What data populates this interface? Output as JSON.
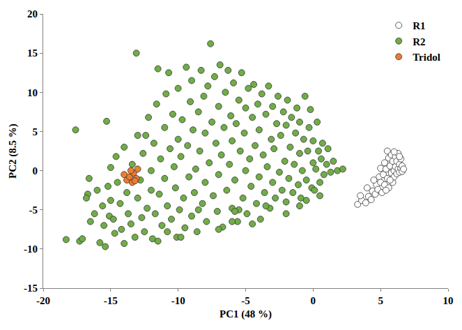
{
  "chart_data": {
    "type": "scatter",
    "x_label": "PC1 (48 %)",
    "y_label": "PC2 (8.5 %)",
    "xlim": [
      -20,
      10
    ],
    "xticks": [
      -20,
      -15,
      -10,
      -5,
      0,
      5,
      10
    ],
    "ylim": [
      -15,
      20
    ],
    "yticks": [
      -15,
      -10,
      -5,
      0,
      5,
      10,
      15,
      20
    ],
    "grid": false,
    "legend": "top-right",
    "series": [
      {
        "name": "R1",
        "color": "#ffffff",
        "marker": "circle",
        "points": [
          [
            3.3,
            -4.3
          ],
          [
            3.6,
            -3.8
          ],
          [
            3.9,
            -4.1
          ],
          [
            4.1,
            -3.3
          ],
          [
            4.3,
            -3.7
          ],
          [
            4.4,
            -2.6
          ],
          [
            4.6,
            -3
          ],
          [
            4.7,
            -1.8
          ],
          [
            4.8,
            -2.4
          ],
          [
            4.9,
            -0.8
          ],
          [
            5,
            -1.5
          ],
          [
            5,
            0.3
          ],
          [
            5.1,
            -2.8
          ],
          [
            5.2,
            -0.5
          ],
          [
            5.3,
            1
          ],
          [
            5.3,
            -1.8
          ],
          [
            5.4,
            0.2
          ],
          [
            5.5,
            2.5
          ],
          [
            5.5,
            -1
          ],
          [
            5.6,
            1.6
          ],
          [
            5.6,
            -2.2
          ],
          [
            5.7,
            0.6
          ],
          [
            5.8,
            -0.3
          ],
          [
            5.8,
            2
          ],
          [
            5.9,
            -1.5
          ],
          [
            5.9,
            1.2
          ],
          [
            6,
            0
          ],
          [
            6,
            -0.8
          ],
          [
            6.1,
            1.8
          ],
          [
            6.1,
            0.5
          ],
          [
            6.2,
            -0.4
          ],
          [
            6.2,
            1.2
          ],
          [
            6.3,
            0.2
          ],
          [
            6.3,
            2.2
          ],
          [
            6.4,
            -0.2
          ],
          [
            6.4,
            0.8
          ],
          [
            6.5,
            0.3
          ],
          [
            6.5,
            1.5
          ],
          [
            6.6,
            -0.1
          ],
          [
            6.6,
            0.6
          ],
          [
            6.7,
            0.2
          ],
          [
            5.4,
            -2.5
          ],
          [
            4.5,
            -1.2
          ],
          [
            3.5,
            -3.2
          ],
          [
            4,
            -2.2
          ],
          [
            5.7,
            -1.2
          ],
          [
            6,
            2.4
          ],
          [
            6.4,
            1.8
          ]
        ]
      },
      {
        "name": "R2",
        "color": "#70ad47",
        "marker": "circle",
        "points": [
          [
            -18.3,
            -8.8
          ],
          [
            -17.6,
            5.2
          ],
          [
            -17.3,
            -9
          ],
          [
            -17.1,
            -8.7
          ],
          [
            -16.7,
            -3
          ],
          [
            -16.8,
            -3.5
          ],
          [
            -16.6,
            -1
          ],
          [
            -16.5,
            -6.5
          ],
          [
            -16.2,
            -5.5
          ],
          [
            -16,
            -2.5
          ],
          [
            -15.8,
            -9.2
          ],
          [
            -15.6,
            -4.5
          ],
          [
            -15.5,
            -7
          ],
          [
            -15.4,
            -9.7
          ],
          [
            -15.3,
            6.3
          ],
          [
            -15.2,
            -2
          ],
          [
            -15.1,
            -5.8
          ],
          [
            -15,
            0.4
          ],
          [
            -15,
            -3.8
          ],
          [
            -14.8,
            -6.2
          ],
          [
            -14.7,
            -8
          ],
          [
            -14.6,
            1.8
          ],
          [
            -14.5,
            -1.5
          ],
          [
            -14.3,
            -4.2
          ],
          [
            -14.2,
            -7.5
          ],
          [
            -14,
            -9.3
          ],
          [
            -14,
            3
          ],
          [
            -13.8,
            -2.8
          ],
          [
            -13.7,
            -5.5
          ],
          [
            -13.5,
            -6.8
          ],
          [
            -13.4,
            0.8
          ],
          [
            -13.2,
            -8.5
          ],
          [
            -13.1,
            15
          ],
          [
            -13,
            4.5
          ],
          [
            -13,
            -3.5
          ],
          [
            -12.8,
            -1.2
          ],
          [
            -12.7,
            -6
          ],
          [
            -12.6,
            2.2
          ],
          [
            -12.5,
            -7.8
          ],
          [
            -12.4,
            4.5
          ],
          [
            -12.3,
            -4.8
          ],
          [
            -12.2,
            6.8
          ],
          [
            -12,
            0
          ],
          [
            -12,
            -2.5
          ],
          [
            -11.9,
            -8.7
          ],
          [
            -11.8,
            3.5
          ],
          [
            -11.7,
            -5.5
          ],
          [
            -11.6,
            8.5
          ],
          [
            -11.5,
            13
          ],
          [
            -11.4,
            -3
          ],
          [
            -11.3,
            1.5
          ],
          [
            -11.2,
            -7
          ],
          [
            -11,
            5.5
          ],
          [
            -11,
            -1
          ],
          [
            -10.9,
            9.8
          ],
          [
            -10.8,
            -4.5
          ],
          [
            -10.7,
            12.5
          ],
          [
            -10.6,
            2.8
          ],
          [
            -10.5,
            -6.2
          ],
          [
            -10.4,
            7.2
          ],
          [
            -10.3,
            0.5
          ],
          [
            -10.2,
            -2.2
          ],
          [
            -10.1,
            -8.5
          ],
          [
            -10,
            4
          ],
          [
            -10,
            10.5
          ],
          [
            -9.9,
            -5
          ],
          [
            -9.8,
            1.8
          ],
          [
            -9.7,
            6.5
          ],
          [
            -9.6,
            -3.5
          ],
          [
            -9.5,
            -7.3
          ],
          [
            -9.4,
            13.2
          ],
          [
            -9.3,
            3.2
          ],
          [
            -9.2,
            -0.8
          ],
          [
            -9.1,
            8.8
          ],
          [
            -9,
            -5.8
          ],
          [
            -9,
            11.5
          ],
          [
            -8.9,
            5.2
          ],
          [
            -8.8,
            -2.8
          ],
          [
            -8.7,
            0.2
          ],
          [
            -8.6,
            -7.8
          ],
          [
            -8.5,
            7.5
          ],
          [
            -8.4,
            2.5
          ],
          [
            -8.3,
            12.8
          ],
          [
            -8.2,
            -4.2
          ],
          [
            -8.1,
            9.5
          ],
          [
            -8,
            -1.5
          ],
          [
            -8,
            4.8
          ],
          [
            -7.9,
            -6.5
          ],
          [
            -7.8,
            10.8
          ],
          [
            -7.7,
            1
          ],
          [
            -7.6,
            16.2
          ],
          [
            -7.5,
            6.2
          ],
          [
            -7.4,
            -3.2
          ],
          [
            -7.3,
            12
          ],
          [
            -7.2,
            3.5
          ],
          [
            -7.1,
            -5.2
          ],
          [
            -7,
            8.2
          ],
          [
            -7,
            -0.5
          ],
          [
            -6.9,
            13.5
          ],
          [
            -6.8,
            2
          ],
          [
            -6.7,
            -7.2
          ],
          [
            -6.6,
            5.5
          ],
          [
            -6.5,
            10
          ],
          [
            -6.4,
            -2.5
          ],
          [
            -6.3,
            12.8
          ],
          [
            -6.2,
            0.8
          ],
          [
            -6.1,
            7
          ],
          [
            -6,
            -4.8
          ],
          [
            -6,
            3.8
          ],
          [
            -5.9,
            11.2
          ],
          [
            -5.8,
            -1.2
          ],
          [
            -5.7,
            6
          ],
          [
            -5.6,
            -6.5
          ],
          [
            -5.5,
            9
          ],
          [
            -5.4,
            2.5
          ],
          [
            -5.3,
            12.5
          ],
          [
            -5.2,
            -3.5
          ],
          [
            -5.1,
            4.8
          ],
          [
            -5,
            0
          ],
          [
            -5,
            8
          ],
          [
            -4.9,
            -5.5
          ],
          [
            -4.8,
            10.5
          ],
          [
            -4.7,
            1.5
          ],
          [
            -4.6,
            -2
          ],
          [
            -4.5,
            6.8
          ],
          [
            -4.4,
            11
          ],
          [
            -4.3,
            3.2
          ],
          [
            -4.2,
            -4.2
          ],
          [
            -4.1,
            8.5
          ],
          [
            -4,
            -0.8
          ],
          [
            -4,
            5.2
          ],
          [
            -3.9,
            -6.2
          ],
          [
            -3.8,
            9.8
          ],
          [
            -3.7,
            2
          ],
          [
            -3.6,
            -2.8
          ],
          [
            -3.5,
            7.2
          ],
          [
            -3.4,
            0.5
          ],
          [
            -3.3,
            10.8
          ],
          [
            -3.2,
            -4.8
          ],
          [
            -3.1,
            4
          ],
          [
            -3,
            -1.5
          ],
          [
            -3,
            8.2
          ],
          [
            -2.9,
            2.8
          ],
          [
            -2.8,
            -3.5
          ],
          [
            -2.7,
            6
          ],
          [
            -2.6,
            9.5
          ],
          [
            -2.5,
            -0.2
          ],
          [
            -2.4,
            4.5
          ],
          [
            -2.3,
            -2.5
          ],
          [
            -2.2,
            7.5
          ],
          [
            -2.1,
            1.2
          ],
          [
            -2,
            -4
          ],
          [
            -2,
            5.8
          ],
          [
            -1.9,
            9
          ],
          [
            -1.8,
            -1
          ],
          [
            -1.7,
            3
          ],
          [
            -1.6,
            6.8
          ],
          [
            -1.5,
            -2.8
          ],
          [
            -1.4,
            0.8
          ],
          [
            -1.3,
            4.8
          ],
          [
            -1.2,
            8
          ],
          [
            -1.1,
            -1.8
          ],
          [
            -1,
            2.2
          ],
          [
            -1,
            6.2
          ],
          [
            -0.9,
            -3.5
          ],
          [
            -0.8,
            0
          ],
          [
            -0.7,
            4
          ],
          [
            -0.6,
            9.5
          ],
          [
            -0.5,
            -1.2
          ],
          [
            -0.4,
            2.5
          ],
          [
            -0.3,
            5.5
          ],
          [
            -0.2,
            7.8
          ],
          [
            -0.1,
            -2.2
          ],
          [
            0,
            1
          ],
          [
            0,
            3.8
          ],
          [
            0.1,
            -2.5
          ],
          [
            0.2,
            0.2
          ],
          [
            0.3,
            6.2
          ],
          [
            0.4,
            2.5
          ],
          [
            0.5,
            -1.5
          ],
          [
            0.6,
            1.5
          ],
          [
            0.7,
            3.5
          ],
          [
            0.8,
            -0.5
          ],
          [
            1,
            0.8
          ],
          [
            1.1,
            2.8
          ],
          [
            1.3,
            -0.2
          ],
          [
            1.5,
            1.2
          ],
          [
            1.8,
            0
          ],
          [
            2.2,
            0.2
          ],
          [
            -11.5,
            -9
          ],
          [
            -10.8,
            -7.8
          ],
          [
            -9.8,
            -8.5
          ],
          [
            -8.5,
            -5
          ],
          [
            -7,
            -7.5
          ],
          [
            -6,
            -6.5
          ],
          [
            -5.5,
            -5
          ],
          [
            -3.5,
            -4.5
          ],
          [
            -2,
            -5.5
          ],
          [
            -0.5,
            -3.8
          ],
          [
            0.5,
            -3.2
          ],
          [
            -1,
            -4.5
          ],
          [
            -4.5,
            -6.8
          ],
          [
            -5.8,
            -5.2
          ]
        ]
      },
      {
        "name": "Tridol",
        "color": "#ed7d31",
        "marker": "circle",
        "points": [
          [
            -14,
            -0.5
          ],
          [
            -13.8,
            -1.2
          ],
          [
            -13.6,
            -0.8
          ],
          [
            -13.4,
            -1.5
          ],
          [
            -13.3,
            -0.3
          ],
          [
            -13.1,
            -1
          ],
          [
            -13.5,
            0
          ],
          [
            -13.2,
            -1.3
          ],
          [
            -13,
            0.2
          ]
        ]
      }
    ]
  }
}
